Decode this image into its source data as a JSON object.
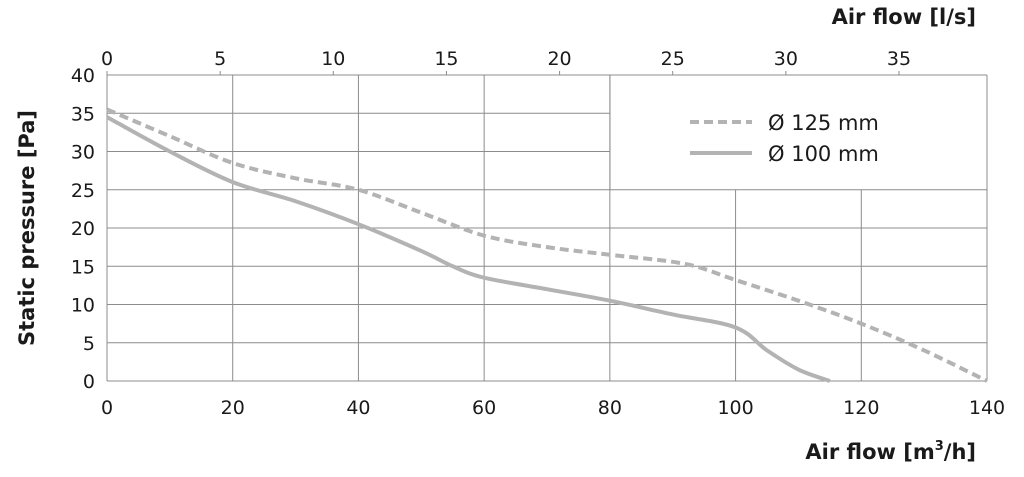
{
  "chart_data": {
    "type": "line",
    "xlabel_bottom": "Air flow [m³/h]",
    "xlabel_bottom_base": "Air flow [m",
    "xlabel_bottom_sup": "3",
    "xlabel_bottom_end": "/h]",
    "xlabel_top": "Air flow [l/s]",
    "ylabel": "Static pressure [Pa]",
    "xlim": [
      0,
      140
    ],
    "ylim": [
      0,
      40
    ],
    "x_ticks": [
      0,
      20,
      40,
      60,
      80,
      100,
      120,
      140
    ],
    "y_ticks": [
      0,
      5,
      10,
      15,
      20,
      25,
      30,
      35,
      40
    ],
    "x_top_ticks": [
      0,
      5,
      10,
      15,
      20,
      25,
      30,
      35
    ],
    "x_top_unit_conversion": 3.6,
    "grid": true,
    "legend_placement": "top-right",
    "series": [
      {
        "name": "Ø 125 mm",
        "style": "dashed",
        "color": "#b3b3b3",
        "x": [
          0,
          10,
          20,
          30,
          40,
          50,
          60,
          70,
          80,
          92,
          100,
          110,
          120,
          130,
          140
        ],
        "y": [
          35.5,
          32,
          28.5,
          26.5,
          25,
          22,
          19,
          17.5,
          16.5,
          15.3,
          13.2,
          10.5,
          7.5,
          4,
          0
        ]
      },
      {
        "name": "Ø 100 mm",
        "style": "solid",
        "color": "#b3b3b3",
        "x": [
          0,
          10,
          20,
          30,
          40,
          50,
          55,
          60,
          70,
          80,
          90,
          100,
          105,
          110,
          115
        ],
        "y": [
          34.5,
          30,
          26,
          23.5,
          20.5,
          17,
          15,
          13.5,
          12,
          10.5,
          8.7,
          7,
          4,
          1.5,
          0
        ]
      }
    ]
  }
}
